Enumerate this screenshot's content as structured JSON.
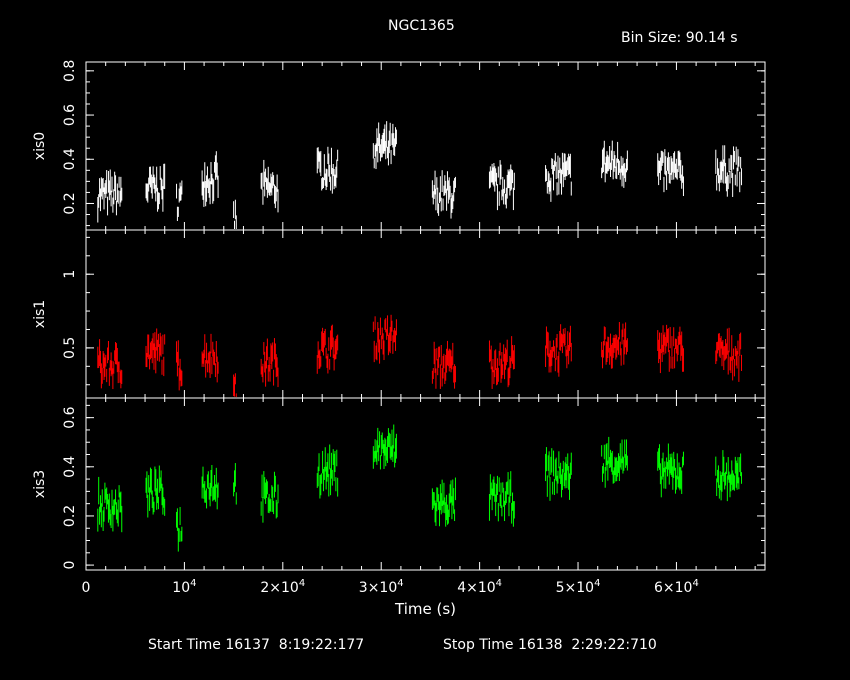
{
  "title": "NGC1365",
  "bin_size": "Bin Size: 90.14 s",
  "footer": {
    "start_label": "Start Time 16137  8:19:22:177",
    "stop_label": "Stop Time 16138  2:29:22:710"
  },
  "chart_data": {
    "type": "scatter",
    "xlabel": "Time (s)",
    "xlim": [
      0,
      69000
    ],
    "x_ticks": [
      {
        "value": 0,
        "mantissa": "0",
        "exp": ""
      },
      {
        "value": 10000,
        "mantissa": "10",
        "exp": "4"
      },
      {
        "value": 20000,
        "mantissa": "2×10",
        "exp": "4"
      },
      {
        "value": 30000,
        "mantissa": "3×10",
        "exp": "4"
      },
      {
        "value": 40000,
        "mantissa": "4×10",
        "exp": "4"
      },
      {
        "value": 50000,
        "mantissa": "5×10",
        "exp": "4"
      },
      {
        "value": 60000,
        "mantissa": "6×10",
        "exp": "4"
      }
    ],
    "panels": [
      {
        "name": "xis0",
        "color": "#ffffff",
        "ylim": [
          0.08,
          0.84
        ],
        "yticks": [
          0.2,
          0.4,
          0.6,
          0.8
        ],
        "ytick_labels": [
          "0.2",
          "0.4",
          "0.6",
          "0.8"
        ],
        "segments": [
          {
            "start": 1200,
            "end": 3700,
            "mean": 0.24
          },
          {
            "start": 6100,
            "end": 8000,
            "mean": 0.27
          },
          {
            "start": 9200,
            "end": 9800,
            "mean": 0.22
          },
          {
            "start": 11800,
            "end": 13500,
            "mean": 0.31
          },
          {
            "start": 15000,
            "end": 15300,
            "mean": 0.12
          },
          {
            "start": 17800,
            "end": 19600,
            "mean": 0.27
          },
          {
            "start": 23500,
            "end": 25600,
            "mean": 0.35
          },
          {
            "start": 29200,
            "end": 31600,
            "mean": 0.45
          },
          {
            "start": 35200,
            "end": 37600,
            "mean": 0.24
          },
          {
            "start": 41000,
            "end": 43600,
            "mean": 0.28
          },
          {
            "start": 46700,
            "end": 49400,
            "mean": 0.33
          },
          {
            "start": 52400,
            "end": 55100,
            "mean": 0.38
          },
          {
            "start": 58100,
            "end": 60800,
            "mean": 0.34
          },
          {
            "start": 64000,
            "end": 66700,
            "mean": 0.35
          }
        ]
      },
      {
        "name": "xis1",
        "color": "#ff0000",
        "ylim": [
          0.16,
          1.3
        ],
        "yticks": [
          0.5,
          1.0
        ],
        "ytick_labels": [
          "0.5",
          "1"
        ],
        "segments": [
          {
            "start": 1200,
            "end": 3700,
            "mean": 0.38
          },
          {
            "start": 6100,
            "end": 8000,
            "mean": 0.47
          },
          {
            "start": 9200,
            "end": 9800,
            "mean": 0.38
          },
          {
            "start": 11800,
            "end": 13500,
            "mean": 0.45
          },
          {
            "start": 15000,
            "end": 15300,
            "mean": 0.2
          },
          {
            "start": 17800,
            "end": 19600,
            "mean": 0.4
          },
          {
            "start": 23500,
            "end": 25600,
            "mean": 0.49
          },
          {
            "start": 29200,
            "end": 31600,
            "mean": 0.57
          },
          {
            "start": 35200,
            "end": 37600,
            "mean": 0.38
          },
          {
            "start": 41000,
            "end": 43600,
            "mean": 0.4
          },
          {
            "start": 46700,
            "end": 49400,
            "mean": 0.48
          },
          {
            "start": 52400,
            "end": 55100,
            "mean": 0.52
          },
          {
            "start": 58100,
            "end": 60800,
            "mean": 0.5
          },
          {
            "start": 64000,
            "end": 66700,
            "mean": 0.46
          }
        ]
      },
      {
        "name": "xis3",
        "color": "#00ff00",
        "ylim": [
          -0.02,
          0.68
        ],
        "yticks": [
          0.0,
          0.2,
          0.4,
          0.6
        ],
        "ytick_labels": [
          "0",
          "0.2",
          "0.4",
          "0.6"
        ],
        "segments": [
          {
            "start": 1200,
            "end": 3700,
            "mean": 0.24
          },
          {
            "start": 6100,
            "end": 8000,
            "mean": 0.29
          },
          {
            "start": 9200,
            "end": 9800,
            "mean": 0.16
          },
          {
            "start": 11800,
            "end": 13500,
            "mean": 0.33
          },
          {
            "start": 15000,
            "end": 15300,
            "mean": 0.33
          },
          {
            "start": 17800,
            "end": 19600,
            "mean": 0.27
          },
          {
            "start": 23500,
            "end": 25600,
            "mean": 0.38
          },
          {
            "start": 29200,
            "end": 31600,
            "mean": 0.47
          },
          {
            "start": 35200,
            "end": 37600,
            "mean": 0.25
          },
          {
            "start": 41000,
            "end": 43600,
            "mean": 0.27
          },
          {
            "start": 46700,
            "end": 49400,
            "mean": 0.37
          },
          {
            "start": 52400,
            "end": 55100,
            "mean": 0.42
          },
          {
            "start": 58100,
            "end": 60800,
            "mean": 0.38
          },
          {
            "start": 64000,
            "end": 66700,
            "mean": 0.36
          }
        ]
      }
    ]
  }
}
